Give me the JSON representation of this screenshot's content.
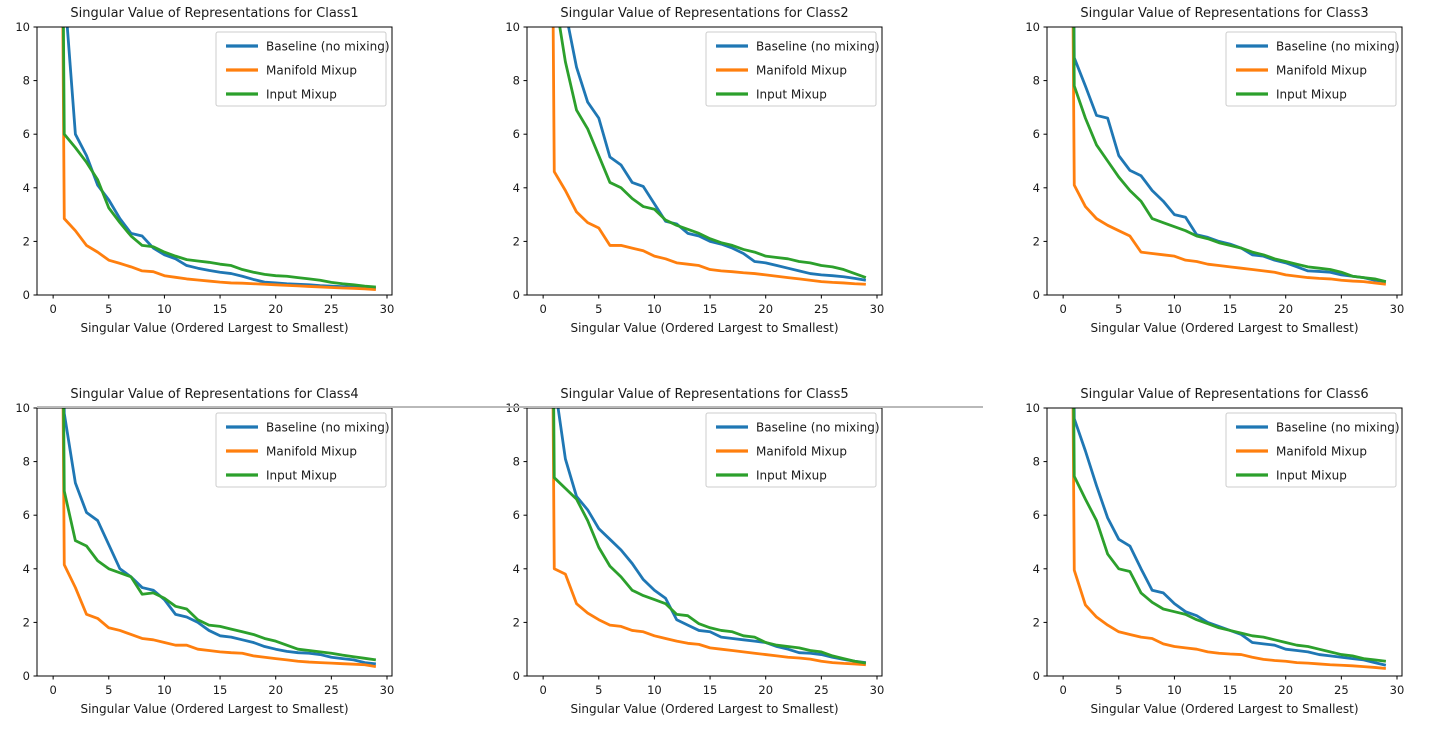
{
  "figure": {
    "background": "#ffffff",
    "separator_color": "#b9b9b9",
    "text_color": "#1a1a1a",
    "spine_color": "#000000",
    "legend_border_color": "#cccccc"
  },
  "axes": {
    "xlabel": "Singular Value (Ordered Largest to Smallest)",
    "xticks": [
      0,
      5,
      10,
      15,
      20,
      25,
      30
    ],
    "yticks": [
      0,
      2,
      4,
      6,
      8,
      10
    ],
    "xlim": [
      -1.45,
      30.45
    ],
    "ylim": [
      0,
      10
    ],
    "x_values": [
      0,
      1,
      2,
      3,
      4,
      5,
      6,
      7,
      8,
      9,
      10,
      11,
      12,
      13,
      14,
      15,
      16,
      17,
      18,
      19,
      20,
      21,
      22,
      23,
      24,
      25,
      26,
      27,
      28,
      29
    ]
  },
  "legend": {
    "position": "upper right",
    "entries": [
      {
        "label": "Baseline (no mixing)",
        "color": "#1f77b4"
      },
      {
        "label": "Manifold Mixup",
        "color": "#ff7f0e"
      },
      {
        "label": "Input Mixup",
        "color": "#2ca02c"
      }
    ]
  },
  "chart_data": [
    {
      "type": "line",
      "title": "Singular Value of Representations for Class1",
      "note": "first values exceed y-limit 10 and are clipped at the top edge",
      "series": [
        {
          "name": "Baseline (no mixing)",
          "color": "#1f77b4",
          "values": [
            60,
            11.5,
            6.0,
            5.2,
            4.1,
            3.55,
            2.85,
            2.3,
            2.2,
            1.75,
            1.5,
            1.35,
            1.1,
            1.0,
            0.92,
            0.85,
            0.8,
            0.7,
            0.58,
            0.48,
            0.45,
            0.42,
            0.4,
            0.38,
            0.35,
            0.33,
            0.31,
            0.29,
            0.27,
            0.25
          ]
        },
        {
          "name": "Manifold Mixup",
          "color": "#ff7f0e",
          "values": [
            60,
            2.85,
            2.4,
            1.85,
            1.6,
            1.3,
            1.18,
            1.05,
            0.9,
            0.87,
            0.72,
            0.66,
            0.6,
            0.56,
            0.52,
            0.48,
            0.45,
            0.44,
            0.42,
            0.4,
            0.38,
            0.36,
            0.34,
            0.32,
            0.3,
            0.28,
            0.26,
            0.25,
            0.23,
            0.2
          ]
        },
        {
          "name": "Input Mixup",
          "color": "#2ca02c",
          "values": [
            60,
            6.0,
            5.5,
            4.95,
            4.3,
            3.25,
            2.7,
            2.2,
            1.85,
            1.8,
            1.6,
            1.45,
            1.32,
            1.27,
            1.22,
            1.15,
            1.1,
            0.95,
            0.85,
            0.77,
            0.72,
            0.7,
            0.65,
            0.6,
            0.55,
            0.47,
            0.42,
            0.38,
            0.33,
            0.3
          ]
        }
      ]
    },
    {
      "type": "line",
      "title": "Singular Value of Representations for Class2",
      "series": [
        {
          "name": "Baseline (no mixing)",
          "color": "#1f77b4",
          "values": [
            60,
            14.0,
            10.6,
            8.5,
            7.2,
            6.6,
            5.15,
            4.85,
            4.2,
            4.05,
            3.4,
            2.75,
            2.65,
            2.3,
            2.2,
            2.0,
            1.9,
            1.75,
            1.55,
            1.25,
            1.2,
            1.1,
            1.0,
            0.9,
            0.8,
            0.75,
            0.72,
            0.68,
            0.62,
            0.55
          ]
        },
        {
          "name": "Manifold Mixup",
          "color": "#ff7f0e",
          "values": [
            60,
            4.6,
            3.9,
            3.1,
            2.7,
            2.5,
            1.85,
            1.85,
            1.75,
            1.65,
            1.45,
            1.35,
            1.2,
            1.15,
            1.1,
            0.95,
            0.9,
            0.87,
            0.83,
            0.8,
            0.75,
            0.7,
            0.65,
            0.6,
            0.55,
            0.5,
            0.47,
            0.45,
            0.42,
            0.4
          ]
        },
        {
          "name": "Input Mixup",
          "color": "#2ca02c",
          "values": [
            60,
            11.3,
            8.7,
            6.9,
            6.2,
            5.2,
            4.2,
            4.0,
            3.6,
            3.3,
            3.2,
            2.8,
            2.6,
            2.45,
            2.3,
            2.1,
            1.95,
            1.85,
            1.7,
            1.6,
            1.45,
            1.4,
            1.35,
            1.25,
            1.2,
            1.1,
            1.05,
            0.95,
            0.8,
            0.65
          ]
        }
      ]
    },
    {
      "type": "line",
      "title": "Singular Value of Representations for Class3",
      "series": [
        {
          "name": "Baseline (no mixing)",
          "color": "#1f77b4",
          "values": [
            60,
            8.85,
            7.8,
            6.7,
            6.6,
            5.2,
            4.65,
            4.45,
            3.9,
            3.5,
            3.0,
            2.9,
            2.25,
            2.15,
            2.0,
            1.9,
            1.75,
            1.5,
            1.45,
            1.3,
            1.2,
            1.05,
            0.9,
            0.88,
            0.85,
            0.75,
            0.7,
            0.65,
            0.55,
            0.5
          ]
        },
        {
          "name": "Manifold Mixup",
          "color": "#ff7f0e",
          "values": [
            60,
            4.1,
            3.3,
            2.85,
            2.6,
            2.4,
            2.2,
            1.6,
            1.55,
            1.5,
            1.45,
            1.3,
            1.25,
            1.15,
            1.1,
            1.05,
            1.0,
            0.95,
            0.9,
            0.85,
            0.75,
            0.7,
            0.65,
            0.62,
            0.6,
            0.55,
            0.52,
            0.5,
            0.45,
            0.4
          ]
        },
        {
          "name": "Input Mixup",
          "color": "#2ca02c",
          "values": [
            60,
            7.8,
            6.6,
            5.6,
            5.0,
            4.4,
            3.9,
            3.5,
            2.85,
            2.7,
            2.55,
            2.4,
            2.2,
            2.1,
            1.95,
            1.85,
            1.75,
            1.6,
            1.5,
            1.35,
            1.25,
            1.15,
            1.05,
            1.0,
            0.95,
            0.85,
            0.7,
            0.65,
            0.6,
            0.5
          ]
        }
      ]
    },
    {
      "type": "line",
      "title": "Singular Value of Representations for Class4",
      "series": [
        {
          "name": "Baseline (no mixing)",
          "color": "#1f77b4",
          "values": [
            60,
            9.8,
            7.2,
            6.1,
            5.8,
            4.9,
            4.0,
            3.7,
            3.3,
            3.2,
            2.85,
            2.3,
            2.2,
            2.0,
            1.7,
            1.5,
            1.45,
            1.35,
            1.25,
            1.1,
            1.0,
            0.92,
            0.87,
            0.85,
            0.8,
            0.7,
            0.65,
            0.6,
            0.5,
            0.45
          ]
        },
        {
          "name": "Manifold Mixup",
          "color": "#ff7f0e",
          "values": [
            60,
            4.15,
            3.3,
            2.3,
            2.15,
            1.8,
            1.7,
            1.55,
            1.4,
            1.35,
            1.25,
            1.15,
            1.15,
            1.0,
            0.95,
            0.9,
            0.87,
            0.85,
            0.75,
            0.7,
            0.65,
            0.6,
            0.55,
            0.52,
            0.5,
            0.48,
            0.46,
            0.44,
            0.42,
            0.35
          ]
        },
        {
          "name": "Input Mixup",
          "color": "#2ca02c",
          "values": [
            60,
            6.9,
            5.05,
            4.85,
            4.3,
            4.0,
            3.85,
            3.7,
            3.05,
            3.1,
            2.9,
            2.6,
            2.5,
            2.1,
            1.9,
            1.85,
            1.75,
            1.65,
            1.55,
            1.4,
            1.3,
            1.15,
            1.0,
            0.95,
            0.9,
            0.85,
            0.78,
            0.72,
            0.66,
            0.6
          ]
        }
      ]
    },
    {
      "type": "line",
      "title": "Singular Value of Representations for Class5",
      "series": [
        {
          "name": "Baseline (no mixing)",
          "color": "#1f77b4",
          "values": [
            60,
            11.0,
            8.1,
            6.7,
            6.2,
            5.5,
            5.1,
            4.7,
            4.2,
            3.6,
            3.2,
            2.9,
            2.1,
            1.9,
            1.7,
            1.65,
            1.45,
            1.4,
            1.35,
            1.3,
            1.25,
            1.1,
            1.0,
            0.87,
            0.85,
            0.8,
            0.7,
            0.62,
            0.55,
            0.5
          ]
        },
        {
          "name": "Manifold Mixup",
          "color": "#ff7f0e",
          "values": [
            60,
            4.0,
            3.8,
            2.7,
            2.35,
            2.1,
            1.9,
            1.85,
            1.7,
            1.65,
            1.5,
            1.4,
            1.3,
            1.22,
            1.18,
            1.05,
            1.0,
            0.95,
            0.9,
            0.85,
            0.8,
            0.75,
            0.7,
            0.67,
            0.63,
            0.55,
            0.5,
            0.47,
            0.45,
            0.42
          ]
        },
        {
          "name": "Input Mixup",
          "color": "#2ca02c",
          "values": [
            60,
            7.4,
            7.0,
            6.6,
            5.8,
            4.8,
            4.1,
            3.7,
            3.2,
            3.0,
            2.85,
            2.7,
            2.3,
            2.25,
            1.95,
            1.8,
            1.7,
            1.65,
            1.5,
            1.45,
            1.25,
            1.15,
            1.1,
            1.05,
            0.95,
            0.9,
            0.75,
            0.65,
            0.55,
            0.48
          ]
        }
      ]
    },
    {
      "type": "line",
      "title": "Singular Value of Representations for Class6",
      "series": [
        {
          "name": "Baseline (no mixing)",
          "color": "#1f77b4",
          "values": [
            60,
            9.6,
            8.4,
            7.1,
            5.9,
            5.1,
            4.85,
            4.0,
            3.2,
            3.1,
            2.7,
            2.4,
            2.25,
            2.0,
            1.85,
            1.7,
            1.55,
            1.25,
            1.2,
            1.15,
            1.0,
            0.95,
            0.9,
            0.8,
            0.75,
            0.7,
            0.65,
            0.6,
            0.5,
            0.4
          ]
        },
        {
          "name": "Manifold Mixup",
          "color": "#ff7f0e",
          "values": [
            60,
            3.95,
            2.65,
            2.2,
            1.9,
            1.65,
            1.55,
            1.45,
            1.4,
            1.2,
            1.1,
            1.05,
            1.0,
            0.9,
            0.85,
            0.82,
            0.8,
            0.7,
            0.62,
            0.58,
            0.55,
            0.5,
            0.48,
            0.45,
            0.42,
            0.4,
            0.38,
            0.35,
            0.32,
            0.28
          ]
        },
        {
          "name": "Input Mixup",
          "color": "#2ca02c",
          "values": [
            60,
            7.45,
            6.6,
            5.8,
            4.55,
            4.0,
            3.9,
            3.1,
            2.75,
            2.5,
            2.4,
            2.3,
            2.1,
            1.95,
            1.8,
            1.7,
            1.6,
            1.5,
            1.45,
            1.35,
            1.25,
            1.15,
            1.1,
            1.0,
            0.9,
            0.8,
            0.75,
            0.65,
            0.6,
            0.55
          ]
        }
      ]
    }
  ]
}
